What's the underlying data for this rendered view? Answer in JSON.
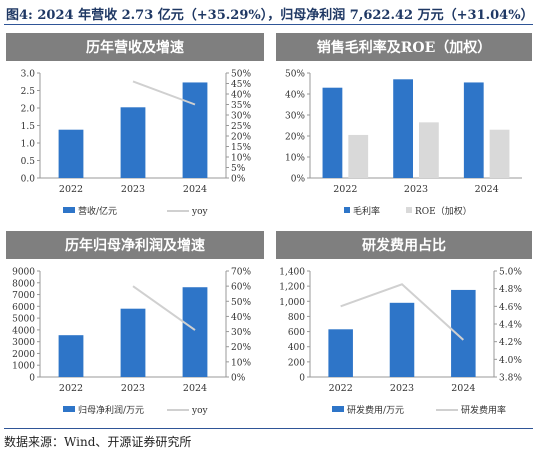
{
  "figure": {
    "title": "图4: 2024 年营收 2.73 亿元（+35.29%），归母净利润 7,622.42 万元（+31.04%）",
    "source": "数据来源：Wind、开源证券研究所"
  },
  "colors": {
    "bar_blue": "#2e75c8",
    "bar_gray": "#d9d9d9",
    "line_gray": "#d0d0d0",
    "header_bg": "#7f7f7f",
    "header_text": "#ffffff"
  },
  "chart_data": [
    {
      "type": "bar",
      "title": "历年营收及增速",
      "categories": [
        "2022",
        "2023",
        "2024"
      ],
      "series": [
        {
          "name": "营收/亿元",
          "type": "bar",
          "axis": "left",
          "values": [
            1.38,
            2.02,
            2.73
          ]
        },
        {
          "name": "yoy",
          "type": "line",
          "axis": "right",
          "values": [
            null,
            0.46,
            0.35
          ]
        }
      ],
      "left_axis": {
        "ylim": [
          0,
          3.0
        ],
        "ticks": [
          "0.0",
          "0.5",
          "1.0",
          "1.5",
          "2.0",
          "2.5",
          "3.0"
        ]
      },
      "right_axis": {
        "ylim": [
          0,
          0.5
        ],
        "ticks": [
          "0%",
          "5%",
          "10%",
          "15%",
          "20%",
          "25%",
          "30%",
          "35%",
          "40%",
          "45%",
          "50%"
        ]
      },
      "legend": "bottom"
    },
    {
      "type": "bar",
      "title": "销售毛利率及ROE（加权）",
      "categories": [
        "2022",
        "2023",
        "2024"
      ],
      "series": [
        {
          "name": "毛利率",
          "values": [
            0.43,
            0.47,
            0.455
          ]
        },
        {
          "name": "ROE（加权）",
          "values": [
            0.205,
            0.265,
            0.23
          ]
        }
      ],
      "left_axis": {
        "ylim": [
          0,
          0.5
        ],
        "ticks": [
          "0%",
          "10%",
          "20%",
          "30%",
          "40%",
          "50%"
        ]
      },
      "legend": "bottom"
    },
    {
      "type": "bar",
      "title": "历年归母净利润及增速",
      "categories": [
        "2022",
        "2023",
        "2024"
      ],
      "series": [
        {
          "name": "归母净利润/万元",
          "type": "bar",
          "axis": "left",
          "values": [
            3550,
            5800,
            7622
          ]
        },
        {
          "name": "yoy",
          "type": "line",
          "axis": "right",
          "values": [
            null,
            0.6,
            0.31
          ]
        }
      ],
      "left_axis": {
        "ylim": [
          0,
          9000
        ],
        "ticks": [
          "0",
          "1000",
          "2000",
          "3000",
          "4000",
          "5000",
          "6000",
          "7000",
          "8000",
          "9000"
        ]
      },
      "right_axis": {
        "ylim": [
          0,
          0.7
        ],
        "ticks": [
          "0%",
          "10%",
          "20%",
          "30%",
          "40%",
          "50%",
          "60%",
          "70%"
        ]
      },
      "legend": "bottom"
    },
    {
      "type": "bar",
      "title": "研发费用占比",
      "categories": [
        "2022",
        "2023",
        "2024"
      ],
      "series": [
        {
          "name": "研发费用/万元",
          "type": "bar",
          "axis": "left",
          "values": [
            630,
            980,
            1150
          ]
        },
        {
          "name": "研发费用率",
          "type": "line",
          "axis": "right",
          "values": [
            0.046,
            0.0485,
            0.0422
          ]
        }
      ],
      "left_axis": {
        "ylim": [
          0,
          1400
        ],
        "ticks": [
          "0",
          "200",
          "400",
          "600",
          "800",
          "1,000",
          "1,200",
          "1,400"
        ]
      },
      "right_axis": {
        "ylim": [
          0.038,
          0.05
        ],
        "ticks": [
          "3.8%",
          "4.0%",
          "4.2%",
          "4.4%",
          "4.6%",
          "4.8%",
          "5.0%"
        ]
      },
      "legend": "bottom"
    }
  ]
}
